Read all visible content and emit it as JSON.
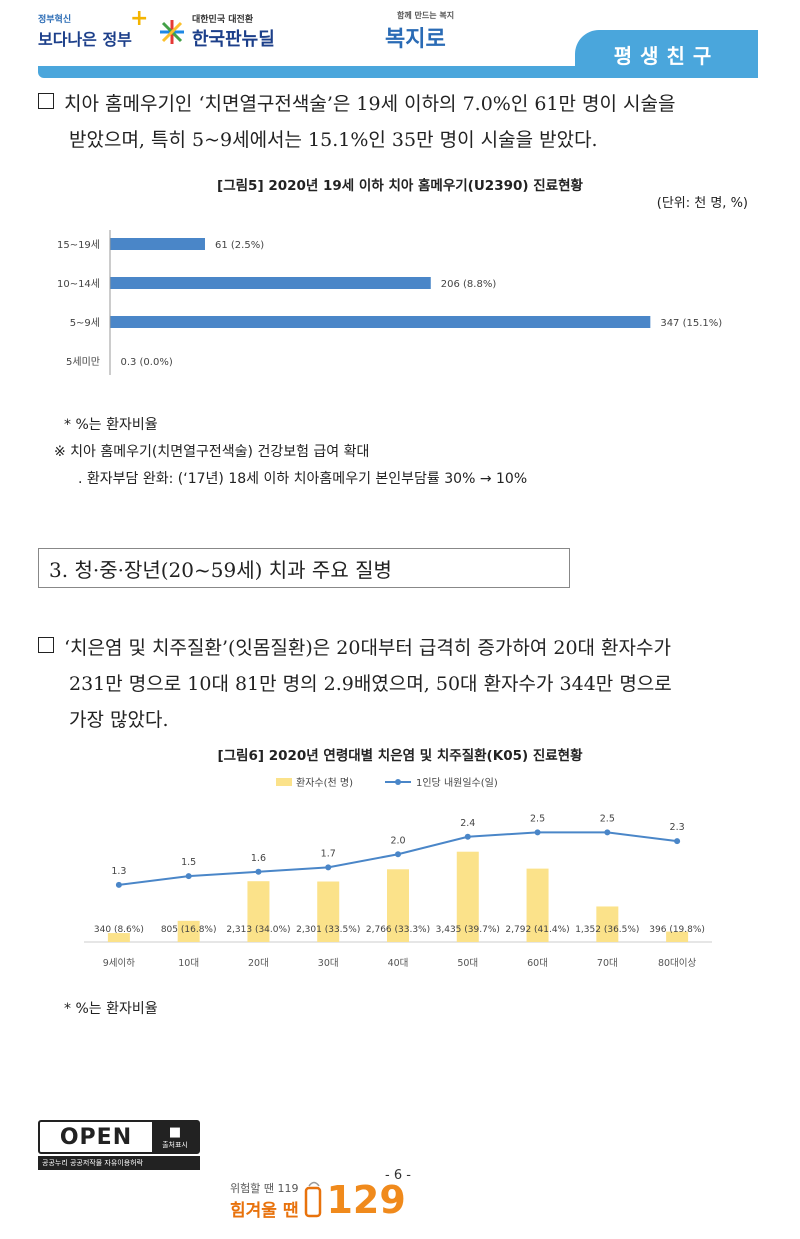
{
  "header": {
    "logo1_small": "정부혁신",
    "logo1_main": "보다나은 정부",
    "logo2_small": "대한민국 대전환",
    "logo2_main": "한국판뉴딜",
    "logo3_small": "함께 만드는 복지",
    "logo3_main": "복지로",
    "tab_label": "평생친구"
  },
  "para1": {
    "line1": "치아 홈메우기인 ‘치면열구전색술’은 19세 이하의 7.0%인 61만 명이 시술을",
    "line2": "받았으며, 특히 5~9세에서는 15.1%인 35만 명이 시술을 받았다."
  },
  "figure5": {
    "title": "[그림5] 2020년 19세 이하 치아 홈메우기(U2390) 진료현황",
    "unit": "(단위: 천 명, %)",
    "note1": "* %는 환자비율",
    "note2": "※ 치아 홈메우기(치면열구전색술) 건강보험 급여 확대",
    "note3": ". 환자부담 완화: (‘17년) 18세 이하 치아홈메우기 본인부담률 30% → 10%"
  },
  "section3": {
    "title": "3. 청·중·장년(20~59세) 치과 주요 질병"
  },
  "para2": {
    "line1": "‘치은염 및 치주질환’(잇몸질환)은 20대부터 급격히 증가하여 20대 환자수가",
    "line2": "231만 명으로 10대 81만 명의 2.9배였으며, 50대 환자수가 344만 명으로",
    "line3": "가장 많았다."
  },
  "figure6": {
    "title": "[그림6] 2020년 연령대별 치은염 및 치주질환(K05) 진료현황",
    "note": "* %는 환자비율"
  },
  "footer": {
    "open_label": "OPEN",
    "open_sub": "공공누리  공공저작물 자유이용허락",
    "open_badge": "출처표시",
    "page_number": "- 6 -",
    "hotline_small": "위험할 땐 119",
    "hotline_main": "힘겨울 땐",
    "hotline_number": "129"
  },
  "colors": {
    "accent": "#4aa6dc",
    "bar_blue": "#4a86c8",
    "bar_yellow": "#fbe28a",
    "line_blue": "#4a86c8",
    "orange": "#f08a1c"
  },
  "chart_data": [
    {
      "type": "bar",
      "orientation": "horizontal",
      "categories": [
        "15~19세",
        "10~14세",
        "5~9세",
        "5세미만"
      ],
      "values": [
        61,
        206,
        347,
        0.3
      ],
      "data_labels": [
        "61 (2.5%)",
        "206 (8.8%)",
        "347 (15.1%)",
        "0.3 (0.0%)"
      ],
      "xlim": [
        0,
        350
      ],
      "grid": false
    },
    {
      "type": "bar",
      "categories": [
        "9세이하",
        "10대",
        "20대",
        "30대",
        "40대",
        "50대",
        "60대",
        "70대",
        "80대이상"
      ],
      "series": [
        {
          "name": "환자수(천 명)",
          "type": "bar",
          "values": [
            340,
            805,
            2313,
            2301,
            2766,
            3435,
            2792,
            1352,
            396
          ],
          "data_labels": [
            "340 (8.6%)",
            "805 (16.8%)",
            "2,313 (34.0%)",
            "2,301 (33.5%)",
            "2,766 (33.3%)",
            "3,435 (39.7%)",
            "2,792 (41.4%)",
            "1,352 (36.5%)",
            "396 (19.8%)"
          ]
        },
        {
          "name": "1인당 내원일수(일)",
          "type": "line",
          "values": [
            1.3,
            1.5,
            1.6,
            1.7,
            2.0,
            2.4,
            2.5,
            2.5,
            2.3
          ],
          "data_labels": [
            "1.3",
            "1.5",
            "1.6",
            "1.7",
            "2.0",
            "2.4",
            "2.5",
            "2.5",
            "2.3"
          ]
        }
      ],
      "legend": "top-center",
      "grid": false
    }
  ]
}
